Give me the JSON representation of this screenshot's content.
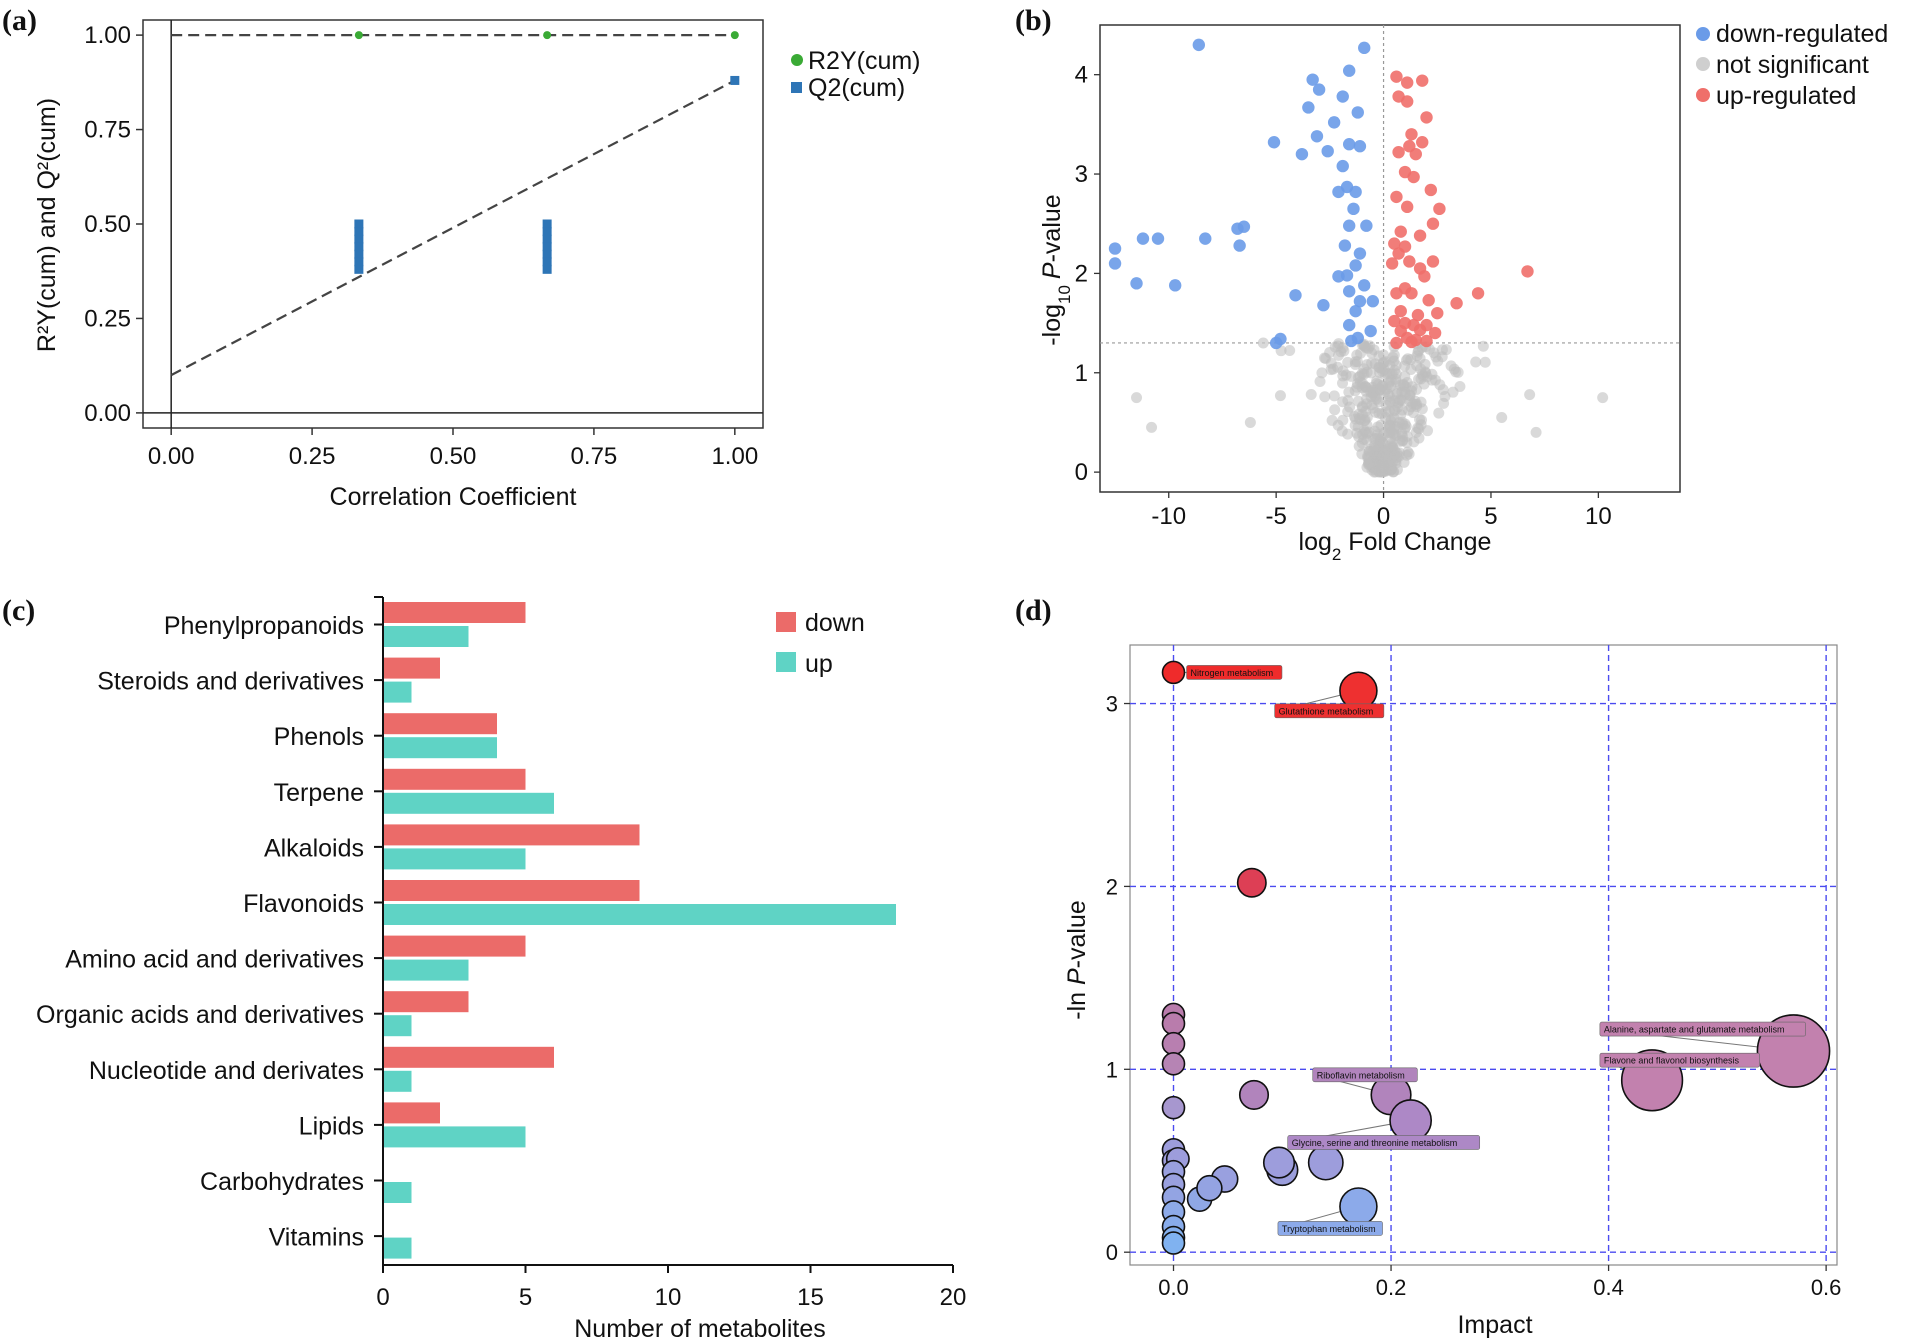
{
  "chart_data": [
    {
      "panel": "(a)",
      "type": "scatter",
      "xlabel": "Correlation Coefficient",
      "ylabel": "R²Y(cum) and Q²(cum)",
      "xlim": [
        -0.05,
        1.05
      ],
      "ylim": [
        -0.04,
        1.04
      ],
      "xticks": [
        "0.00",
        "0.25",
        "0.50",
        "0.75",
        "1.00"
      ],
      "yticks": [
        "0.00",
        "0.25",
        "0.50",
        "0.75",
        "1.00"
      ],
      "legend": [
        "R2Y(cum)",
        "Q2(cum)"
      ],
      "series": [
        {
          "name": "R2Y(cum)",
          "color": "#3aaa35",
          "x": [
            0.333,
            0.667,
            1.0
          ],
          "y": [
            1.0,
            1.0,
            1.0
          ]
        },
        {
          "name": "Q2(cum)",
          "color": "#2e75b6",
          "x": [
            0.333,
            0.333,
            0.333,
            0.333,
            0.333,
            0.333,
            0.333,
            0.667,
            0.667,
            0.667,
            0.667,
            0.667,
            0.667,
            0.667,
            1.0
          ],
          "y": [
            0.5,
            0.48,
            0.46,
            0.44,
            0.42,
            0.4,
            0.38,
            0.5,
            0.48,
            0.46,
            0.44,
            0.42,
            0.4,
            0.38,
            0.88
          ]
        }
      ],
      "lines": [
        {
          "name": "R2Y fit",
          "x": [
            0,
            1
          ],
          "y": [
            1.0,
            1.0
          ]
        },
        {
          "name": "Q2 fit",
          "x": [
            0,
            1
          ],
          "y": [
            0.1,
            0.88
          ]
        }
      ]
    },
    {
      "panel": "(b)",
      "type": "scatter",
      "xlabel": "log",
      "xlabel_sub": "2",
      "xlabel_rest": " Fold Change",
      "ylabel_pre": "-log",
      "ylabel_sub": "10",
      "ylabel_p": "P",
      "ylabel_rest": "-value",
      "xlim": [
        -13.2,
        13.8
      ],
      "ylim": [
        -0.2,
        4.5
      ],
      "xticks": [
        "-10",
        "-5",
        "0",
        "5",
        "10"
      ],
      "yticks": [
        "0",
        "1",
        "2",
        "3",
        "4"
      ],
      "threshold_y": 1.3,
      "legend": [
        "down-regulated",
        "not significant",
        "up-regulated"
      ],
      "series": [
        {
          "name": "down-regulated",
          "color": "#6a9be8",
          "points": [
            [
              -8.6,
              4.3
            ],
            [
              -0.9,
              4.27
            ],
            [
              -1.6,
              4.04
            ],
            [
              -1.9,
              3.78
            ],
            [
              -3.3,
              3.95
            ],
            [
              -3.0,
              3.85
            ],
            [
              -3.5,
              3.67
            ],
            [
              -2.3,
              3.52
            ],
            [
              -1.2,
              3.62
            ],
            [
              -3.1,
              3.38
            ],
            [
              -5.1,
              3.32
            ],
            [
              -1.6,
              3.3
            ],
            [
              -1.1,
              3.28
            ],
            [
              -2.6,
              3.23
            ],
            [
              -3.8,
              3.2
            ],
            [
              -1.9,
              3.08
            ],
            [
              -1.7,
              2.87
            ],
            [
              -1.3,
              2.82
            ],
            [
              -2.1,
              2.82
            ],
            [
              -1.4,
              2.65
            ],
            [
              -1.6,
              2.48
            ],
            [
              -0.8,
              2.48
            ],
            [
              -1.8,
              2.28
            ],
            [
              -1.1,
              2.2
            ],
            [
              -1.3,
              2.08
            ],
            [
              -1.7,
              1.98
            ],
            [
              -2.1,
              1.97
            ],
            [
              -0.9,
              1.88
            ],
            [
              -1.6,
              1.82
            ],
            [
              -4.1,
              1.78
            ],
            [
              -1.1,
              1.72
            ],
            [
              -0.5,
              1.72
            ],
            [
              -2.8,
              1.68
            ],
            [
              -1.3,
              1.62
            ],
            [
              -1.6,
              1.48
            ],
            [
              -0.6,
              1.42
            ],
            [
              -1.2,
              1.35
            ],
            [
              -1.5,
              1.32
            ],
            [
              -4.8,
              1.34
            ],
            [
              -5.0,
              1.3
            ],
            [
              -12.5,
              2.25
            ],
            [
              -12.5,
              2.1
            ],
            [
              -11.2,
              2.35
            ],
            [
              -10.5,
              2.35
            ],
            [
              -11.5,
              1.9
            ],
            [
              -9.7,
              1.88
            ],
            [
              -8.3,
              2.35
            ],
            [
              -6.8,
              2.45
            ],
            [
              -6.5,
              2.47
            ],
            [
              -6.7,
              2.28
            ]
          ]
        },
        {
          "name": "up-regulated",
          "color": "#ef6f6a",
          "points": [
            [
              0.6,
              3.98
            ],
            [
              1.1,
              3.92
            ],
            [
              1.8,
              3.94
            ],
            [
              0.7,
              3.78
            ],
            [
              1.1,
              3.73
            ],
            [
              2.0,
              3.57
            ],
            [
              1.3,
              3.4
            ],
            [
              1.8,
              3.32
            ],
            [
              1.2,
              3.28
            ],
            [
              0.7,
              3.22
            ],
            [
              1.5,
              3.2
            ],
            [
              1.0,
              3.02
            ],
            [
              1.4,
              2.97
            ],
            [
              2.2,
              2.84
            ],
            [
              0.6,
              2.77
            ],
            [
              1.1,
              2.67
            ],
            [
              2.6,
              2.65
            ],
            [
              2.3,
              2.5
            ],
            [
              0.8,
              2.42
            ],
            [
              1.7,
              2.38
            ],
            [
              0.5,
              2.3
            ],
            [
              1.0,
              2.27
            ],
            [
              0.7,
              2.2
            ],
            [
              1.2,
              2.12
            ],
            [
              2.3,
              2.12
            ],
            [
              0.4,
              2.1
            ],
            [
              1.7,
              2.05
            ],
            [
              6.7,
              2.02
            ],
            [
              1.9,
              1.97
            ],
            [
              1.0,
              1.85
            ],
            [
              0.6,
              1.8
            ],
            [
              1.3,
              1.8
            ],
            [
              4.4,
              1.8
            ],
            [
              2.1,
              1.73
            ],
            [
              3.4,
              1.7
            ],
            [
              0.8,
              1.62
            ],
            [
              1.6,
              1.58
            ],
            [
              2.5,
              1.6
            ],
            [
              0.5,
              1.52
            ],
            [
              1.0,
              1.5
            ],
            [
              1.4,
              1.48
            ],
            [
              2.0,
              1.48
            ],
            [
              0.8,
              1.42
            ],
            [
              1.7,
              1.43
            ],
            [
              2.4,
              1.4
            ],
            [
              1.1,
              1.35
            ],
            [
              1.5,
              1.33
            ],
            [
              2.0,
              1.32
            ],
            [
              0.6,
              1.3
            ],
            [
              1.3,
              1.31
            ]
          ]
        }
      ]
    },
    {
      "panel": "(c)",
      "type": "bar",
      "orientation": "horizontal",
      "xlabel": "Number of metabolites",
      "xlim": [
        0,
        20
      ],
      "xticks": [
        "0",
        "5",
        "10",
        "15",
        "20"
      ],
      "categories": [
        "Phenylpropanoids",
        "Steroids and derivatives",
        "Phenols",
        "Terpene",
        "Alkaloids",
        "Flavonoids",
        "Amino acid and derivatives",
        "Organic acids and derivatives",
        "Nucleotide and derivates",
        "Lipids",
        "Carbohydrates",
        "Vitamins"
      ],
      "legend": [
        "down",
        "up"
      ],
      "series": [
        {
          "name": "down",
          "color": "#eb6b69",
          "values": [
            5,
            2,
            4,
            5,
            9,
            9,
            5,
            3,
            6,
            2,
            0,
            0
          ]
        },
        {
          "name": "up",
          "color": "#5fd3c5",
          "values": [
            3,
            1,
            4,
            6,
            5,
            18,
            3,
            1,
            1,
            5,
            1,
            1
          ]
        }
      ]
    },
    {
      "panel": "(d)",
      "type": "scatter",
      "xlabel": "Impact",
      "ylabel_pre": "-ln ",
      "ylabel_p": "P",
      "ylabel_rest": "-value",
      "xlim": [
        -0.04,
        0.61
      ],
      "ylim": [
        -0.07,
        3.32
      ],
      "xticks": [
        "0.0",
        "0.2",
        "0.4",
        "0.6"
      ],
      "yticks": [
        "0",
        "1",
        "2",
        "3"
      ],
      "points": [
        {
          "x": 0.0,
          "y": 3.17,
          "impact": 0.0,
          "color": "#ef2b2b"
        },
        {
          "x": 0.17,
          "y": 3.07,
          "impact": 0.17,
          "color": "#ee3030"
        },
        {
          "x": 0.072,
          "y": 2.02,
          "impact": 0.072,
          "color": "#dd3f55"
        },
        {
          "x": 0.0,
          "y": 1.3,
          "impact": 0.0,
          "color": "#b97cac"
        },
        {
          "x": 0.0,
          "y": 1.25,
          "impact": 0.0,
          "color": "#b97cac"
        },
        {
          "x": 0.0,
          "y": 1.14,
          "impact": 0.0,
          "color": "#b87fb0"
        },
        {
          "x": 0.0,
          "y": 1.03,
          "impact": 0.0,
          "color": "#b684b4"
        },
        {
          "x": 0.0,
          "y": 0.79,
          "impact": 0.0,
          "color": "#a797cf"
        },
        {
          "x": 0.074,
          "y": 0.86,
          "impact": 0.074,
          "color": "#b184bc"
        },
        {
          "x": 0.2,
          "y": 0.86,
          "impact": 0.2,
          "color": "#b184bc"
        },
        {
          "x": 0.218,
          "y": 0.72,
          "impact": 0.218,
          "color": "#ad88c6"
        },
        {
          "x": 0.57,
          "y": 1.1,
          "impact": 0.57,
          "color": "#c281ae"
        },
        {
          "x": 0.44,
          "y": 0.94,
          "impact": 0.44,
          "color": "#c281ae"
        },
        {
          "x": 0.0,
          "y": 0.56,
          "impact": 0.0,
          "color": "#9d9ddc"
        },
        {
          "x": 0.0,
          "y": 0.5,
          "impact": 0.0,
          "color": "#9d9ddc"
        },
        {
          "x": 0.004,
          "y": 0.51,
          "impact": 0.004,
          "color": "#9d9ddc"
        },
        {
          "x": 0.0,
          "y": 0.44,
          "impact": 0.0,
          "color": "#99a0df"
        },
        {
          "x": 0.0,
          "y": 0.37,
          "impact": 0.0,
          "color": "#99a0df"
        },
        {
          "x": 0.0,
          "y": 0.3,
          "impact": 0.0,
          "color": "#93a4e3"
        },
        {
          "x": 0.0,
          "y": 0.22,
          "impact": 0.0,
          "color": "#8daae8"
        },
        {
          "x": 0.0,
          "y": 0.14,
          "impact": 0.0,
          "color": "#88aceb"
        },
        {
          "x": 0.0,
          "y": 0.08,
          "impact": 0.0,
          "color": "#84b0ee"
        },
        {
          "x": 0.0,
          "y": 0.05,
          "impact": 0.0,
          "color": "#80b2f0"
        },
        {
          "x": 0.024,
          "y": 0.29,
          "impact": 0.024,
          "color": "#8fa8e6"
        },
        {
          "x": 0.047,
          "y": 0.4,
          "impact": 0.047,
          "color": "#99a0df"
        },
        {
          "x": 0.033,
          "y": 0.35,
          "impact": 0.033,
          "color": "#94a3e2"
        },
        {
          "x": 0.1,
          "y": 0.45,
          "impact": 0.1,
          "color": "#9b9edc"
        },
        {
          "x": 0.097,
          "y": 0.49,
          "impact": 0.097,
          "color": "#9d9ddc"
        },
        {
          "x": 0.14,
          "y": 0.49,
          "impact": 0.14,
          "color": "#9d9ddc"
        },
        {
          "x": 0.17,
          "y": 0.25,
          "impact": 0.17,
          "color": "#8caaea"
        }
      ],
      "labels": [
        {
          "text": "Nitrogen metabolism",
          "x": 0.012,
          "y": 3.17,
          "ptx": 0.0,
          "pty": 3.17,
          "color": "#ef2b2b"
        },
        {
          "text": "Glutathione metabolism",
          "x": 0.093,
          "y": 2.96,
          "ptx": 0.17,
          "pty": 3.07,
          "color": "#ee3030"
        },
        {
          "text": "Riboflavin metabolism",
          "x": 0.128,
          "y": 0.97,
          "ptx": 0.2,
          "pty": 0.86,
          "color": "#b184bc"
        },
        {
          "text": "Glycine, serine and threonine metabolism",
          "x": 0.105,
          "y": 0.6,
          "ptx": 0.218,
          "pty": 0.72,
          "color": "#ad88c6"
        },
        {
          "text": "Tryptophan metabolism",
          "x": 0.096,
          "y": 0.13,
          "ptx": 0.17,
          "pty": 0.25,
          "color": "#8caaea"
        },
        {
          "text": "Alanine, aspartate and glutamate metabolism",
          "x": 0.392,
          "y": 1.22,
          "ptx": 0.57,
          "pty": 1.1,
          "color": "#c281ae"
        },
        {
          "text": "Flavone and flavonol biosynthesis",
          "x": 0.392,
          "y": 1.05,
          "ptx": 0.44,
          "pty": 0.94,
          "color": "#c281ae"
        }
      ]
    }
  ],
  "panel_labels": [
    "(a)",
    "(b)",
    "(c)",
    "(d)"
  ]
}
